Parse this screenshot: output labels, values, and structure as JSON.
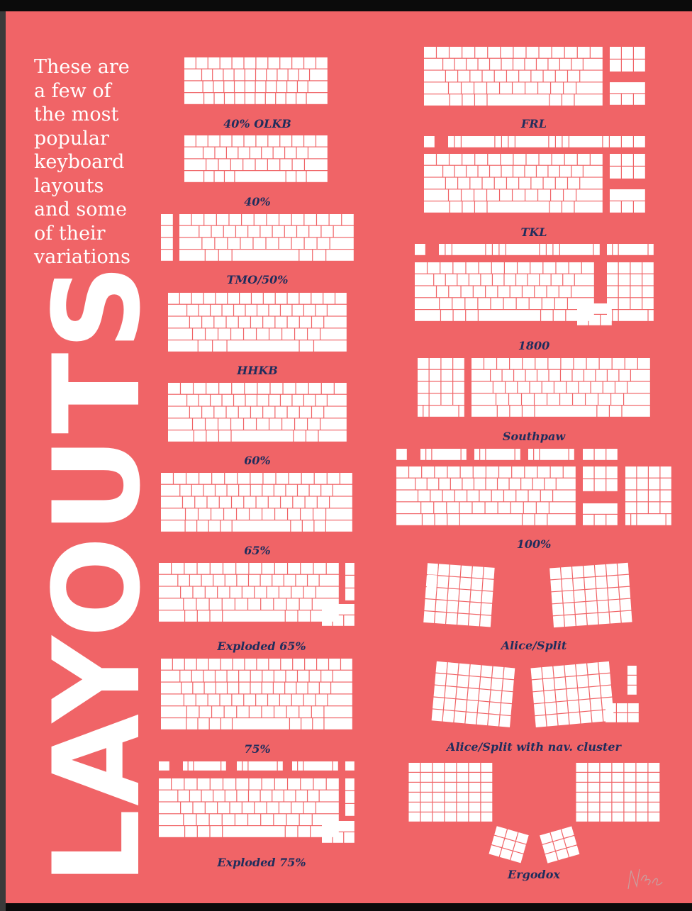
{
  "intro_text": "These are a few of the most popular keyboard layouts and some of their variations",
  "big_title": "LAYOUTS",
  "colors": {
    "background": "#f06467",
    "key": "#ffffff",
    "gap": "#f06467",
    "label": "#1f2d5c"
  },
  "layouts": [
    {
      "id": "40-olkb",
      "label": "40% OLKB"
    },
    {
      "id": "40",
      "label": "40%"
    },
    {
      "id": "tmo50",
      "label": "TMO/50%"
    },
    {
      "id": "hhkb",
      "label": "HHKB"
    },
    {
      "id": "60",
      "label": "60%"
    },
    {
      "id": "65",
      "label": "65%"
    },
    {
      "id": "exploded-65",
      "label": "Exploded 65%"
    },
    {
      "id": "75",
      "label": "75%"
    },
    {
      "id": "exploded-75",
      "label": "Exploded 75%"
    },
    {
      "id": "frl",
      "label": "FRL"
    },
    {
      "id": "tkl",
      "label": "TKL"
    },
    {
      "id": "1800",
      "label": "1800"
    },
    {
      "id": "southpaw",
      "label": "Southpaw"
    },
    {
      "id": "100",
      "label": "100%"
    },
    {
      "id": "alice-split",
      "label": "Alice/Split"
    },
    {
      "id": "alice-split-nav",
      "label": "Alice/Split with nav. cluster"
    },
    {
      "id": "ergodox",
      "label": "Ergodox"
    }
  ]
}
